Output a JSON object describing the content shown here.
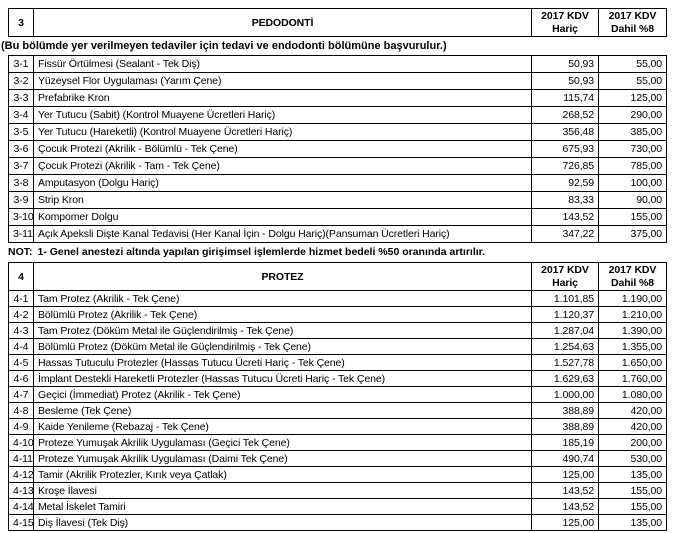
{
  "colors": {
    "background": "#ffffff",
    "border": "#000000",
    "text": "#000000"
  },
  "price_columns": [
    {
      "line1": "2017 KDV",
      "line2": "Hariç"
    },
    {
      "line1": "2017 KDV",
      "line2": "Dahil %8"
    }
  ],
  "sections": [
    {
      "number": "3",
      "title": "PEDODONTİ",
      "note": "(Bu bölümde yer verilmeyen tedaviler için tedavi ve endodonti bölümüne başvurulur.)",
      "footnote_label": "NOT:",
      "footnote_text": "1- Genel anestezi altında yapılan girişimsel işlemlerde hizmet bedeli %50 oranında artırılır.",
      "rows": [
        {
          "code": "3-1",
          "desc": "Fissür Örtülmesi (Sealant - Tek Diş)",
          "haric": "50,93",
          "dahil": "55,00"
        },
        {
          "code": "3-2",
          "desc": "Yüzeysel Flor Uygulaması (Yarım Çene)",
          "haric": "50,93",
          "dahil": "55,00"
        },
        {
          "code": "3-3",
          "desc": "Prefabrike Kron",
          "haric": "115,74",
          "dahil": "125,00"
        },
        {
          "code": "3-4",
          "desc": "Yer Tutucu (Sabit) (Kontrol Muayene Ücretleri Hariç)",
          "haric": "268,52",
          "dahil": "290,00"
        },
        {
          "code": "3-5",
          "desc": "Yer Tutucu (Hareketli) (Kontrol Muayene Ücretleri Hariç)",
          "haric": "356,48",
          "dahil": "385,00"
        },
        {
          "code": "3-6",
          "desc": "Çocuk Protezi (Akrilik - Bölümlü - Tek Çene)",
          "haric": "675,93",
          "dahil": "730,00"
        },
        {
          "code": "3-7",
          "desc": "Çocuk Protezi (Akrilik - Tam - Tek Çene)",
          "haric": "726,85",
          "dahil": "785,00"
        },
        {
          "code": "3-8",
          "desc": "Amputasyon (Dolgu Hariç)",
          "haric": "92,59",
          "dahil": "100,00"
        },
        {
          "code": "3-9",
          "desc": "Strip Kron",
          "haric": "83,33",
          "dahil": "90,00"
        },
        {
          "code": "3-10",
          "desc": "Kompomer Dolgu",
          "haric": "143,52",
          "dahil": "155,00"
        },
        {
          "code": "3-11",
          "desc": "Açık Apeksli Dişte Kanal Tedavisi (Her Kanal İçin - Dolgu Hariç)(Pansuman Ücretleri Hariç)",
          "haric": "347,22",
          "dahil": "375,00"
        }
      ]
    },
    {
      "number": "4",
      "title": "PROTEZ",
      "rows": [
        {
          "code": "4-1",
          "desc": "Tam Protez (Akrilik - Tek Çene)",
          "haric": "1.101,85",
          "dahil": "1.190,00"
        },
        {
          "code": "4-2",
          "desc": "Bölümlü Protez (Akrilik - Tek Çene)",
          "haric": "1.120,37",
          "dahil": "1.210,00"
        },
        {
          "code": "4-3",
          "desc": "Tam Protez (Döküm Metal ile Güçlendirilmiş - Tek Çene)",
          "haric": "1.287,04",
          "dahil": "1.390,00"
        },
        {
          "code": "4-4",
          "desc": "Bölümlü Protez (Döküm Metal ile Güçlendirilmiş - Tek Çene)",
          "haric": "1.254,63",
          "dahil": "1.355,00"
        },
        {
          "code": "4-5",
          "desc": "Hassas Tutuculu Protezler (Hassas Tutucu Ücreti Hariç - Tek Çene)",
          "haric": "1.527,78",
          "dahil": "1.650,00"
        },
        {
          "code": "4-6",
          "desc": "İmplant Destekli Hareketli Protezler (Hassas Tutucu Ücreti Hariç - Tek Çene)",
          "haric": "1.629,63",
          "dahil": "1.760,00"
        },
        {
          "code": "4-7",
          "desc": "Geçici (İmmediat) Protez (Akrilik - Tek Çene)",
          "haric": "1.000,00",
          "dahil": "1.080,00"
        },
        {
          "code": "4-8",
          "desc": "Besleme (Tek Çene)",
          "haric": "388,89",
          "dahil": "420,00"
        },
        {
          "code": "4-9",
          "desc": "Kaide Yenileme (Rebazaj - Tek Çene)",
          "haric": "388,89",
          "dahil": "420,00"
        },
        {
          "code": "4-10",
          "desc": "Proteze Yumuşak Akrilik Uygulaması (Geçici Tek Çene)",
          "haric": "185,19",
          "dahil": "200,00"
        },
        {
          "code": "4-11",
          "desc": "Proteze Yumuşak Akrilik Uygulaması (Daimi Tek Çene)",
          "haric": "490,74",
          "dahil": "530,00"
        },
        {
          "code": "4-12",
          "desc": "Tamir (Akrilik Protezler, Kırık veya Çatlak)",
          "haric": "125,00",
          "dahil": "135,00"
        },
        {
          "code": "4-13",
          "desc": "Kroşe İlavesi",
          "haric": "143,52",
          "dahil": "155,00"
        },
        {
          "code": "4-14",
          "desc": "Metal İskelet Tamiri",
          "haric": "143,52",
          "dahil": "155,00"
        },
        {
          "code": "4-15",
          "desc": "Diş İlavesi (Tek Diş)",
          "haric": "125,00",
          "dahil": "135,00"
        }
      ]
    }
  ]
}
